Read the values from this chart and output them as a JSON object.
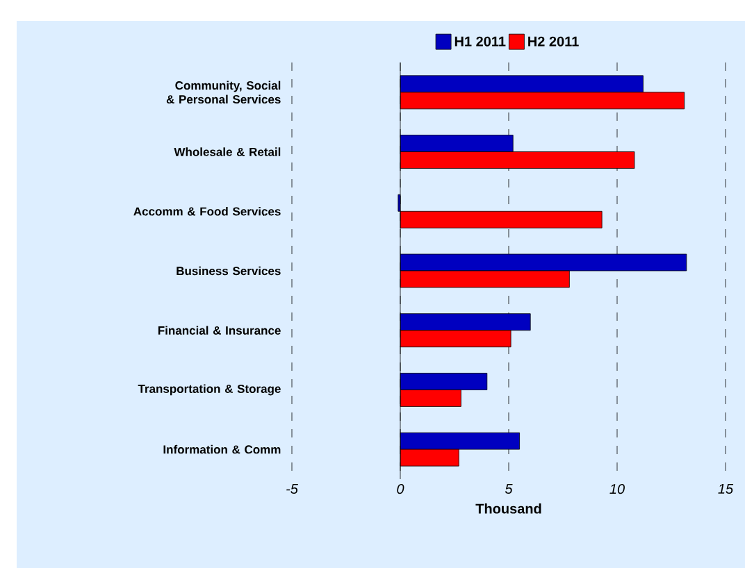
{
  "chart_data": {
    "type": "bar",
    "orientation": "horizontal",
    "xlabel": "Thousand",
    "categories": [
      "Community, Social & Personal Services",
      "Wholesale & Retail",
      "Accomm & Food Services",
      "Business Services",
      "Financial & Insurance",
      "Transportation & Storage",
      "Information & Comm"
    ],
    "series": [
      {
        "name": "H1 2011",
        "color": "#0000c0",
        "values": [
          11.2,
          5.2,
          -0.1,
          13.2,
          6.0,
          4.0,
          5.5
        ]
      },
      {
        "name": "H2 2011",
        "color": "#ff0000",
        "values": [
          13.1,
          10.8,
          9.3,
          7.8,
          5.1,
          2.8,
          2.7
        ]
      }
    ],
    "xlim": [
      -5,
      15
    ],
    "xticks": [
      -5,
      0,
      5,
      10,
      15
    ],
    "grid": "x",
    "legend": "top"
  }
}
